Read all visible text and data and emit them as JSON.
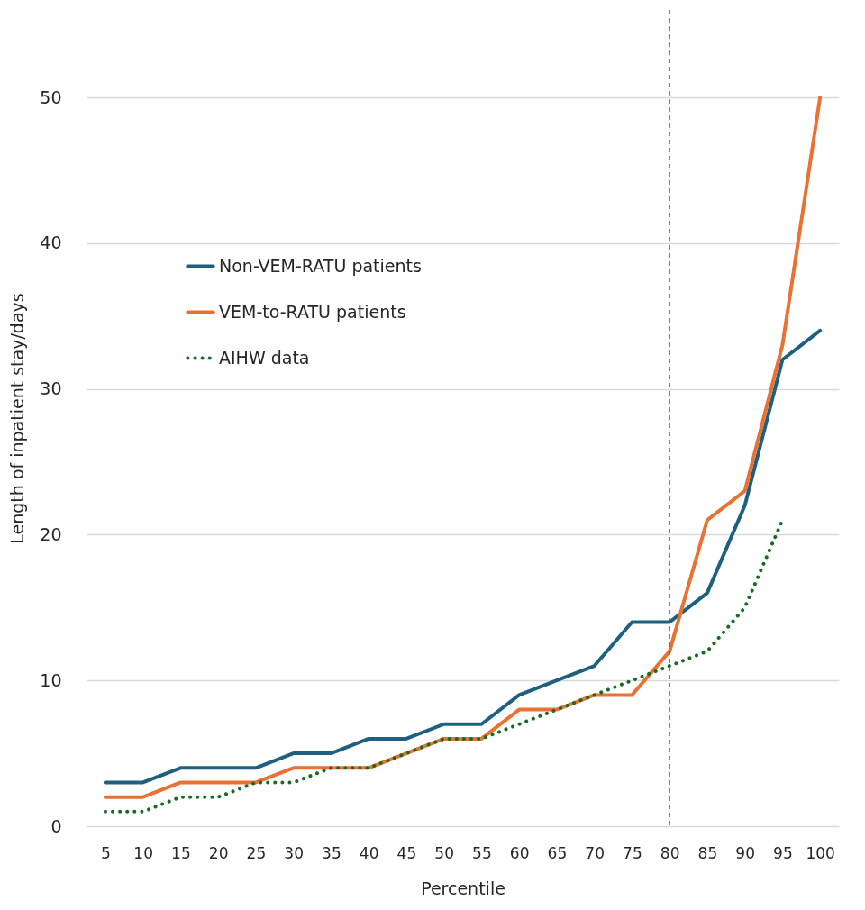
{
  "chart_data": {
    "type": "line",
    "xlabel": "Percentile",
    "ylabel": "Length of inpatient stay/days",
    "categories": [
      "5",
      "10",
      "15",
      "20",
      "25",
      "30",
      "35",
      "40",
      "45",
      "50",
      "55",
      "60",
      "65",
      "70",
      "75",
      "80",
      "85",
      "90",
      "95",
      "100"
    ],
    "series": [
      {
        "name": "Non-VEM-RATU patients",
        "color": "#1f5f7f",
        "line_style": "solid",
        "values": [
          3,
          3,
          4,
          4,
          4,
          5,
          5,
          6,
          6,
          7,
          7,
          9,
          10,
          11,
          14,
          14,
          16,
          22,
          32,
          34
        ]
      },
      {
        "name": "VEM-to-RATU patients",
        "color": "#e97132",
        "line_style": "solid",
        "values": [
          2,
          2,
          3,
          3,
          3,
          4,
          4,
          4,
          5,
          6,
          6,
          8,
          8,
          9,
          9,
          12,
          21,
          23,
          33,
          50
        ]
      },
      {
        "name": "AIHW data",
        "color": "#196b24",
        "line_style": "dotted",
        "values": [
          1,
          1,
          2,
          2,
          3,
          3,
          4,
          4,
          5,
          6,
          6,
          7,
          8,
          9,
          10,
          11,
          12,
          15,
          21,
          null
        ]
      }
    ],
    "ylim": [
      0,
      56
    ],
    "yticks": [
      0,
      10,
      20,
      30,
      40,
      50
    ],
    "grid": "y",
    "legend": "top left",
    "marker": "none",
    "ref_lines": [
      {
        "axis": "x",
        "value": "80",
        "color": "#2e6b8f",
        "line_style": "dashed"
      }
    ]
  }
}
